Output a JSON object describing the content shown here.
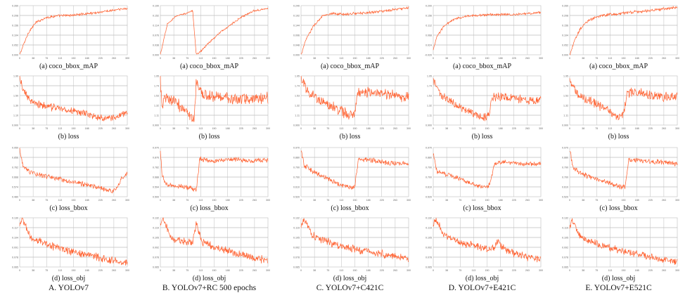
{
  "colors": {
    "series": "#ff5722",
    "series_light": "#ffab91",
    "grid": "#9e9e9e",
    "frame": "#bdbdbd",
    "axis_text": "#666666"
  },
  "columns": [
    {
      "label": "A. YOLOv7"
    },
    {
      "label": "B. YOLOv7+RC 500 epochs"
    },
    {
      "label": "C. YOLOv7+C421C"
    },
    {
      "label": "D. YOLOv7+E421C"
    },
    {
      "label": "E. YOLOv7+E521C"
    }
  ],
  "rows": [
    {
      "caption": "(a)  coco_bbox_mAP"
    },
    {
      "caption": "(b)  loss"
    },
    {
      "caption": "(c)  loss_bbox"
    },
    {
      "caption": "(d)  loss_obj"
    }
  ],
  "chart_data": [
    {
      "type": "line",
      "column": 0,
      "row": 0,
      "title": "",
      "xlabel": "",
      "ylabel": "",
      "grid": true,
      "noise": 0.005,
      "series": [
        {
          "x": [
            0,
            12,
            25,
            45,
            70,
            100,
            150,
            200,
            260,
            300
          ],
          "y": [
            0.0,
            0.06,
            0.12,
            0.17,
            0.195,
            0.205,
            0.21,
            0.22,
            0.235,
            0.245
          ]
        }
      ],
      "ylim": [
        0,
        0.26
      ]
    },
    {
      "type": "line",
      "column": 1,
      "row": 0,
      "title": "",
      "xlabel": "",
      "ylabel": "",
      "grid": true,
      "noise": 0.003,
      "series": [
        {
          "x": [
            0,
            20,
            45,
            70,
            90,
            100,
            110,
            130,
            170,
            220,
            260,
            300
          ],
          "y": [
            0.0,
            0.12,
            0.15,
            0.16,
            0.17,
            0.0,
            0.01,
            0.04,
            0.09,
            0.14,
            0.17,
            0.18
          ]
        }
      ],
      "ylim": [
        0,
        0.19
      ]
    },
    {
      "type": "line",
      "column": 2,
      "row": 0,
      "title": "",
      "xlabel": "",
      "ylabel": "",
      "grid": true,
      "noise": 0.005,
      "series": [
        {
          "x": [
            0,
            15,
            35,
            60,
            90,
            120,
            180,
            240,
            300
          ],
          "y": [
            0.0,
            0.08,
            0.14,
            0.19,
            0.2,
            0.198,
            0.205,
            0.215,
            0.23
          ]
        }
      ],
      "ylim": [
        0,
        0.24
      ]
    },
    {
      "type": "line",
      "column": 3,
      "row": 0,
      "title": "",
      "xlabel": "",
      "ylabel": "",
      "grid": true,
      "noise": 0.004,
      "series": [
        {
          "x": [
            0,
            10,
            30,
            60,
            100,
            160,
            220,
            270,
            300
          ],
          "y": [
            0.0,
            0.06,
            0.11,
            0.14,
            0.155,
            0.16,
            0.16,
            0.165,
            0.17
          ]
        }
      ],
      "ylim": [
        -0.02,
        0.2
      ]
    },
    {
      "type": "line",
      "column": 4,
      "row": 0,
      "title": "",
      "xlabel": "",
      "ylabel": "",
      "grid": true,
      "noise": 0.006,
      "series": [
        {
          "x": [
            0,
            15,
            30,
            50,
            75,
            100,
            150,
            200,
            250,
            300
          ],
          "y": [
            0.0,
            0.08,
            0.14,
            0.18,
            0.2,
            0.21,
            0.22,
            0.23,
            0.24,
            0.25
          ]
        }
      ],
      "ylim": [
        0,
        0.26
      ]
    },
    {
      "type": "line",
      "column": 0,
      "row": 1,
      "title": "",
      "xlabel": "",
      "ylabel": "",
      "grid": true,
      "noise": 0.06,
      "series": [
        {
          "x": [
            0,
            10,
            30,
            60,
            100,
            150,
            200,
            240,
            280,
            300
          ],
          "y": [
            1.85,
            1.6,
            1.38,
            1.3,
            1.25,
            1.18,
            1.1,
            1.02,
            1.1,
            1.15
          ]
        }
      ],
      "ylim": [
        0.9,
        1.9
      ]
    },
    {
      "type": "line",
      "column": 1,
      "row": 1,
      "title": "",
      "xlabel": "",
      "ylabel": "",
      "grid": true,
      "noise": 0.1,
      "series": [
        {
          "x": [
            0,
            5,
            15,
            40,
            70,
            95,
            100,
            108,
            120,
            150,
            200,
            250,
            300
          ],
          "y": [
            1.85,
            1.3,
            1.5,
            1.4,
            1.2,
            1.05,
            1.8,
            1.7,
            1.55,
            1.5,
            1.48,
            1.45,
            1.48
          ]
        }
      ],
      "ylim": [
        0.9,
        1.95
      ]
    },
    {
      "type": "line",
      "column": 2,
      "row": 1,
      "title": "",
      "xlabel": "",
      "ylabel": "",
      "grid": true,
      "noise": 0.09,
      "series": [
        {
          "x": [
            0,
            20,
            60,
            100,
            130,
            150,
            160,
            200,
            250,
            300
          ],
          "y": [
            1.9,
            1.6,
            1.4,
            1.25,
            1.12,
            1.15,
            1.6,
            1.6,
            1.55,
            1.5
          ]
        }
      ],
      "ylim": [
        0.9,
        1.95
      ]
    },
    {
      "type": "line",
      "column": 3,
      "row": 1,
      "title": "",
      "xlabel": "",
      "ylabel": "",
      "grid": true,
      "noise": 0.07,
      "series": [
        {
          "x": [
            0,
            20,
            60,
            100,
            140,
            155,
            165,
            200,
            250,
            300
          ],
          "y": [
            1.85,
            1.55,
            1.35,
            1.2,
            1.05,
            1.1,
            1.5,
            1.5,
            1.45,
            1.42
          ]
        }
      ],
      "ylim": [
        0.9,
        1.95
      ]
    },
    {
      "type": "line",
      "column": 4,
      "row": 1,
      "title": "",
      "xlabel": "",
      "ylabel": "",
      "grid": true,
      "noise": 0.08,
      "series": [
        {
          "x": [
            0,
            20,
            60,
            100,
            135,
            150,
            160,
            200,
            250,
            300
          ],
          "y": [
            1.85,
            1.55,
            1.4,
            1.25,
            1.1,
            1.12,
            1.6,
            1.58,
            1.52,
            1.5
          ]
        }
      ],
      "ylim": [
        0.9,
        1.95
      ]
    },
    {
      "type": "line",
      "column": 0,
      "row": 2,
      "title": "",
      "xlabel": "",
      "ylabel": "",
      "grid": true,
      "noise": 0.018,
      "series": [
        {
          "x": [
            0,
            10,
            40,
            80,
            120,
            180,
            220,
            260,
            270,
            285,
            300
          ],
          "y": [
            0.92,
            0.76,
            0.7,
            0.67,
            0.64,
            0.6,
            0.57,
            0.53,
            0.56,
            0.66,
            0.7
          ]
        }
      ],
      "ylim": [
        0.48,
        0.95
      ]
    },
    {
      "type": "line",
      "column": 1,
      "row": 2,
      "title": "",
      "xlabel": "",
      "ylabel": "",
      "grid": true,
      "noise": 0.018,
      "series": [
        {
          "x": [
            0,
            5,
            15,
            50,
            90,
            100,
            110,
            150,
            200,
            250,
            300
          ],
          "y": [
            0.95,
            0.7,
            0.62,
            0.6,
            0.58,
            0.56,
            0.86,
            0.84,
            0.86,
            0.84,
            0.85
          ]
        }
      ],
      "ylim": [
        0.5,
        0.97
      ]
    },
    {
      "type": "line",
      "column": 2,
      "row": 2,
      "title": "",
      "xlabel": "",
      "ylabel": "",
      "grid": true,
      "noise": 0.018,
      "series": [
        {
          "x": [
            0,
            10,
            40,
            80,
            110,
            140,
            150,
            160,
            200,
            250,
            300
          ],
          "y": [
            0.95,
            0.8,
            0.74,
            0.68,
            0.63,
            0.6,
            0.62,
            0.86,
            0.85,
            0.83,
            0.82
          ]
        }
      ],
      "ylim": [
        0.52,
        0.97
      ]
    },
    {
      "type": "line",
      "column": 3,
      "row": 2,
      "title": "",
      "xlabel": "",
      "ylabel": "",
      "grid": true,
      "noise": 0.016,
      "series": [
        {
          "x": [
            0,
            10,
            40,
            80,
            120,
            150,
            160,
            170,
            200,
            250,
            300
          ],
          "y": [
            0.92,
            0.75,
            0.72,
            0.68,
            0.62,
            0.6,
            0.66,
            0.82,
            0.84,
            0.82,
            0.82
          ]
        }
      ],
      "ylim": [
        0.52,
        0.97
      ]
    },
    {
      "type": "line",
      "column": 4,
      "row": 2,
      "title": "",
      "xlabel": "",
      "ylabel": "",
      "grid": true,
      "noise": 0.018,
      "series": [
        {
          "x": [
            0,
            10,
            40,
            80,
            120,
            145,
            155,
            165,
            200,
            250,
            300
          ],
          "y": [
            0.95,
            0.78,
            0.72,
            0.68,
            0.64,
            0.6,
            0.62,
            0.86,
            0.85,
            0.84,
            0.82
          ]
        }
      ],
      "ylim": [
        0.52,
        0.97
      ]
    },
    {
      "type": "line",
      "column": 0,
      "row": 3,
      "title": "",
      "xlabel": "",
      "ylabel": "",
      "grid": true,
      "noise": 0.004,
      "series": [
        {
          "x": [
            0,
            8,
            30,
            80,
            140,
            200,
            250,
            300
          ],
          "y": [
            0.12,
            0.128,
            0.104,
            0.094,
            0.086,
            0.08,
            0.074,
            0.071
          ]
        }
      ],
      "ylim": [
        0.065,
        0.13
      ]
    },
    {
      "type": "line",
      "column": 1,
      "row": 3,
      "title": "",
      "xlabel": "",
      "ylabel": "",
      "grid": true,
      "noise": 0.004,
      "series": [
        {
          "x": [
            0,
            8,
            30,
            60,
            90,
            95,
            100,
            115,
            150,
            200,
            250,
            300
          ],
          "y": [
            0.125,
            0.13,
            0.104,
            0.1,
            0.098,
            0.11,
            0.125,
            0.1,
            0.092,
            0.085,
            0.078,
            0.074
          ]
        }
      ],
      "ylim": [
        0.065,
        0.132
      ]
    },
    {
      "type": "line",
      "column": 2,
      "row": 3,
      "title": "",
      "xlabel": "",
      "ylabel": "",
      "grid": true,
      "noise": 0.004,
      "series": [
        {
          "x": [
            0,
            8,
            30,
            80,
            140,
            200,
            250,
            300
          ],
          "y": [
            0.12,
            0.13,
            0.108,
            0.098,
            0.09,
            0.085,
            0.08,
            0.076
          ]
        }
      ],
      "ylim": [
        0.065,
        0.132
      ]
    },
    {
      "type": "line",
      "column": 3,
      "row": 3,
      "title": "",
      "xlabel": "",
      "ylabel": "",
      "grid": true,
      "noise": 0.004,
      "series": [
        {
          "x": [
            0,
            8,
            30,
            80,
            140,
            170,
            180,
            200,
            250,
            300
          ],
          "y": [
            0.124,
            0.13,
            0.108,
            0.098,
            0.09,
            0.09,
            0.1,
            0.088,
            0.08,
            0.075
          ]
        }
      ],
      "ylim": [
        0.065,
        0.132
      ]
    },
    {
      "type": "line",
      "column": 4,
      "row": 3,
      "title": "",
      "xlabel": "",
      "ylabel": "",
      "grid": true,
      "noise": 0.004,
      "series": [
        {
          "x": [
            0,
            8,
            30,
            80,
            140,
            200,
            250,
            300
          ],
          "y": [
            0.12,
            0.128,
            0.106,
            0.096,
            0.088,
            0.082,
            0.076,
            0.072
          ]
        }
      ],
      "ylim": [
        0.065,
        0.132
      ]
    }
  ]
}
